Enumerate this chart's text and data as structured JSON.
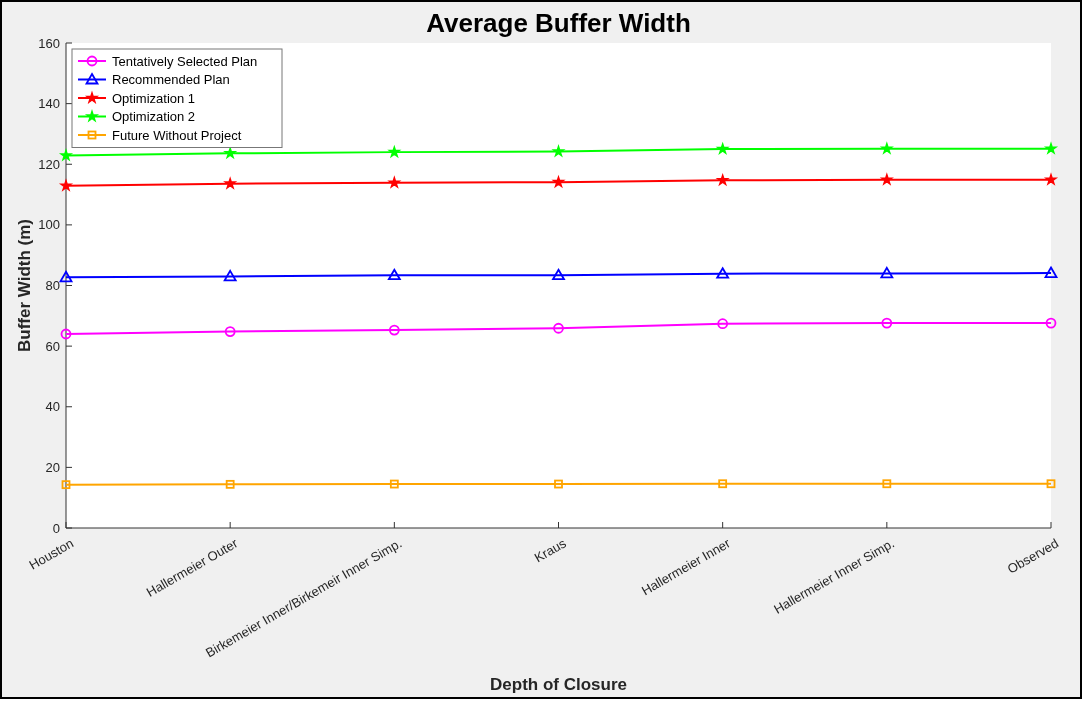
{
  "chart_data": {
    "type": "line",
    "title": "Average Buffer Width",
    "xlabel": "Depth of Closure",
    "ylabel": "Buffer Width (m)",
    "categories": [
      "Houston",
      "Hallermeier Outer",
      "Birkemeier Inner/Birkemeir Inner Simp.",
      "Kraus",
      "Hallermeier Inner",
      "Hallermeier Inner Simp.",
      "Observed"
    ],
    "series": [
      {
        "name": "Tentatively Selected Plan",
        "color": "#ff00ff",
        "marker": "circle",
        "values": [
          64,
          64.8,
          65.3,
          65.9,
          67.4,
          67.6,
          67.6
        ]
      },
      {
        "name": "Recommended Plan",
        "color": "#0000ff",
        "marker": "triangle",
        "values": [
          82.7,
          83,
          83.4,
          83.4,
          83.9,
          84,
          84.1
        ]
      },
      {
        "name": "Optimization 1",
        "color": "#ff0000",
        "marker": "star",
        "values": [
          112.9,
          113.6,
          113.9,
          114.1,
          114.7,
          114.9,
          114.9
        ]
      },
      {
        "name": "Optimization 2",
        "color": "#00ff00",
        "marker": "star",
        "values": [
          122.9,
          123.6,
          124,
          124.2,
          125,
          125.1,
          125.1
        ]
      },
      {
        "name": "Future Without Project",
        "color": "#ffa500",
        "marker": "square",
        "values": [
          14.3,
          14.4,
          14.5,
          14.5,
          14.6,
          14.6,
          14.6
        ]
      }
    ],
    "ylim": [
      0,
      160
    ],
    "yticks": [
      0,
      20,
      40,
      60,
      80,
      100,
      120,
      140,
      160
    ],
    "grid": false,
    "legend": "top left",
    "line_style": "solid"
  }
}
